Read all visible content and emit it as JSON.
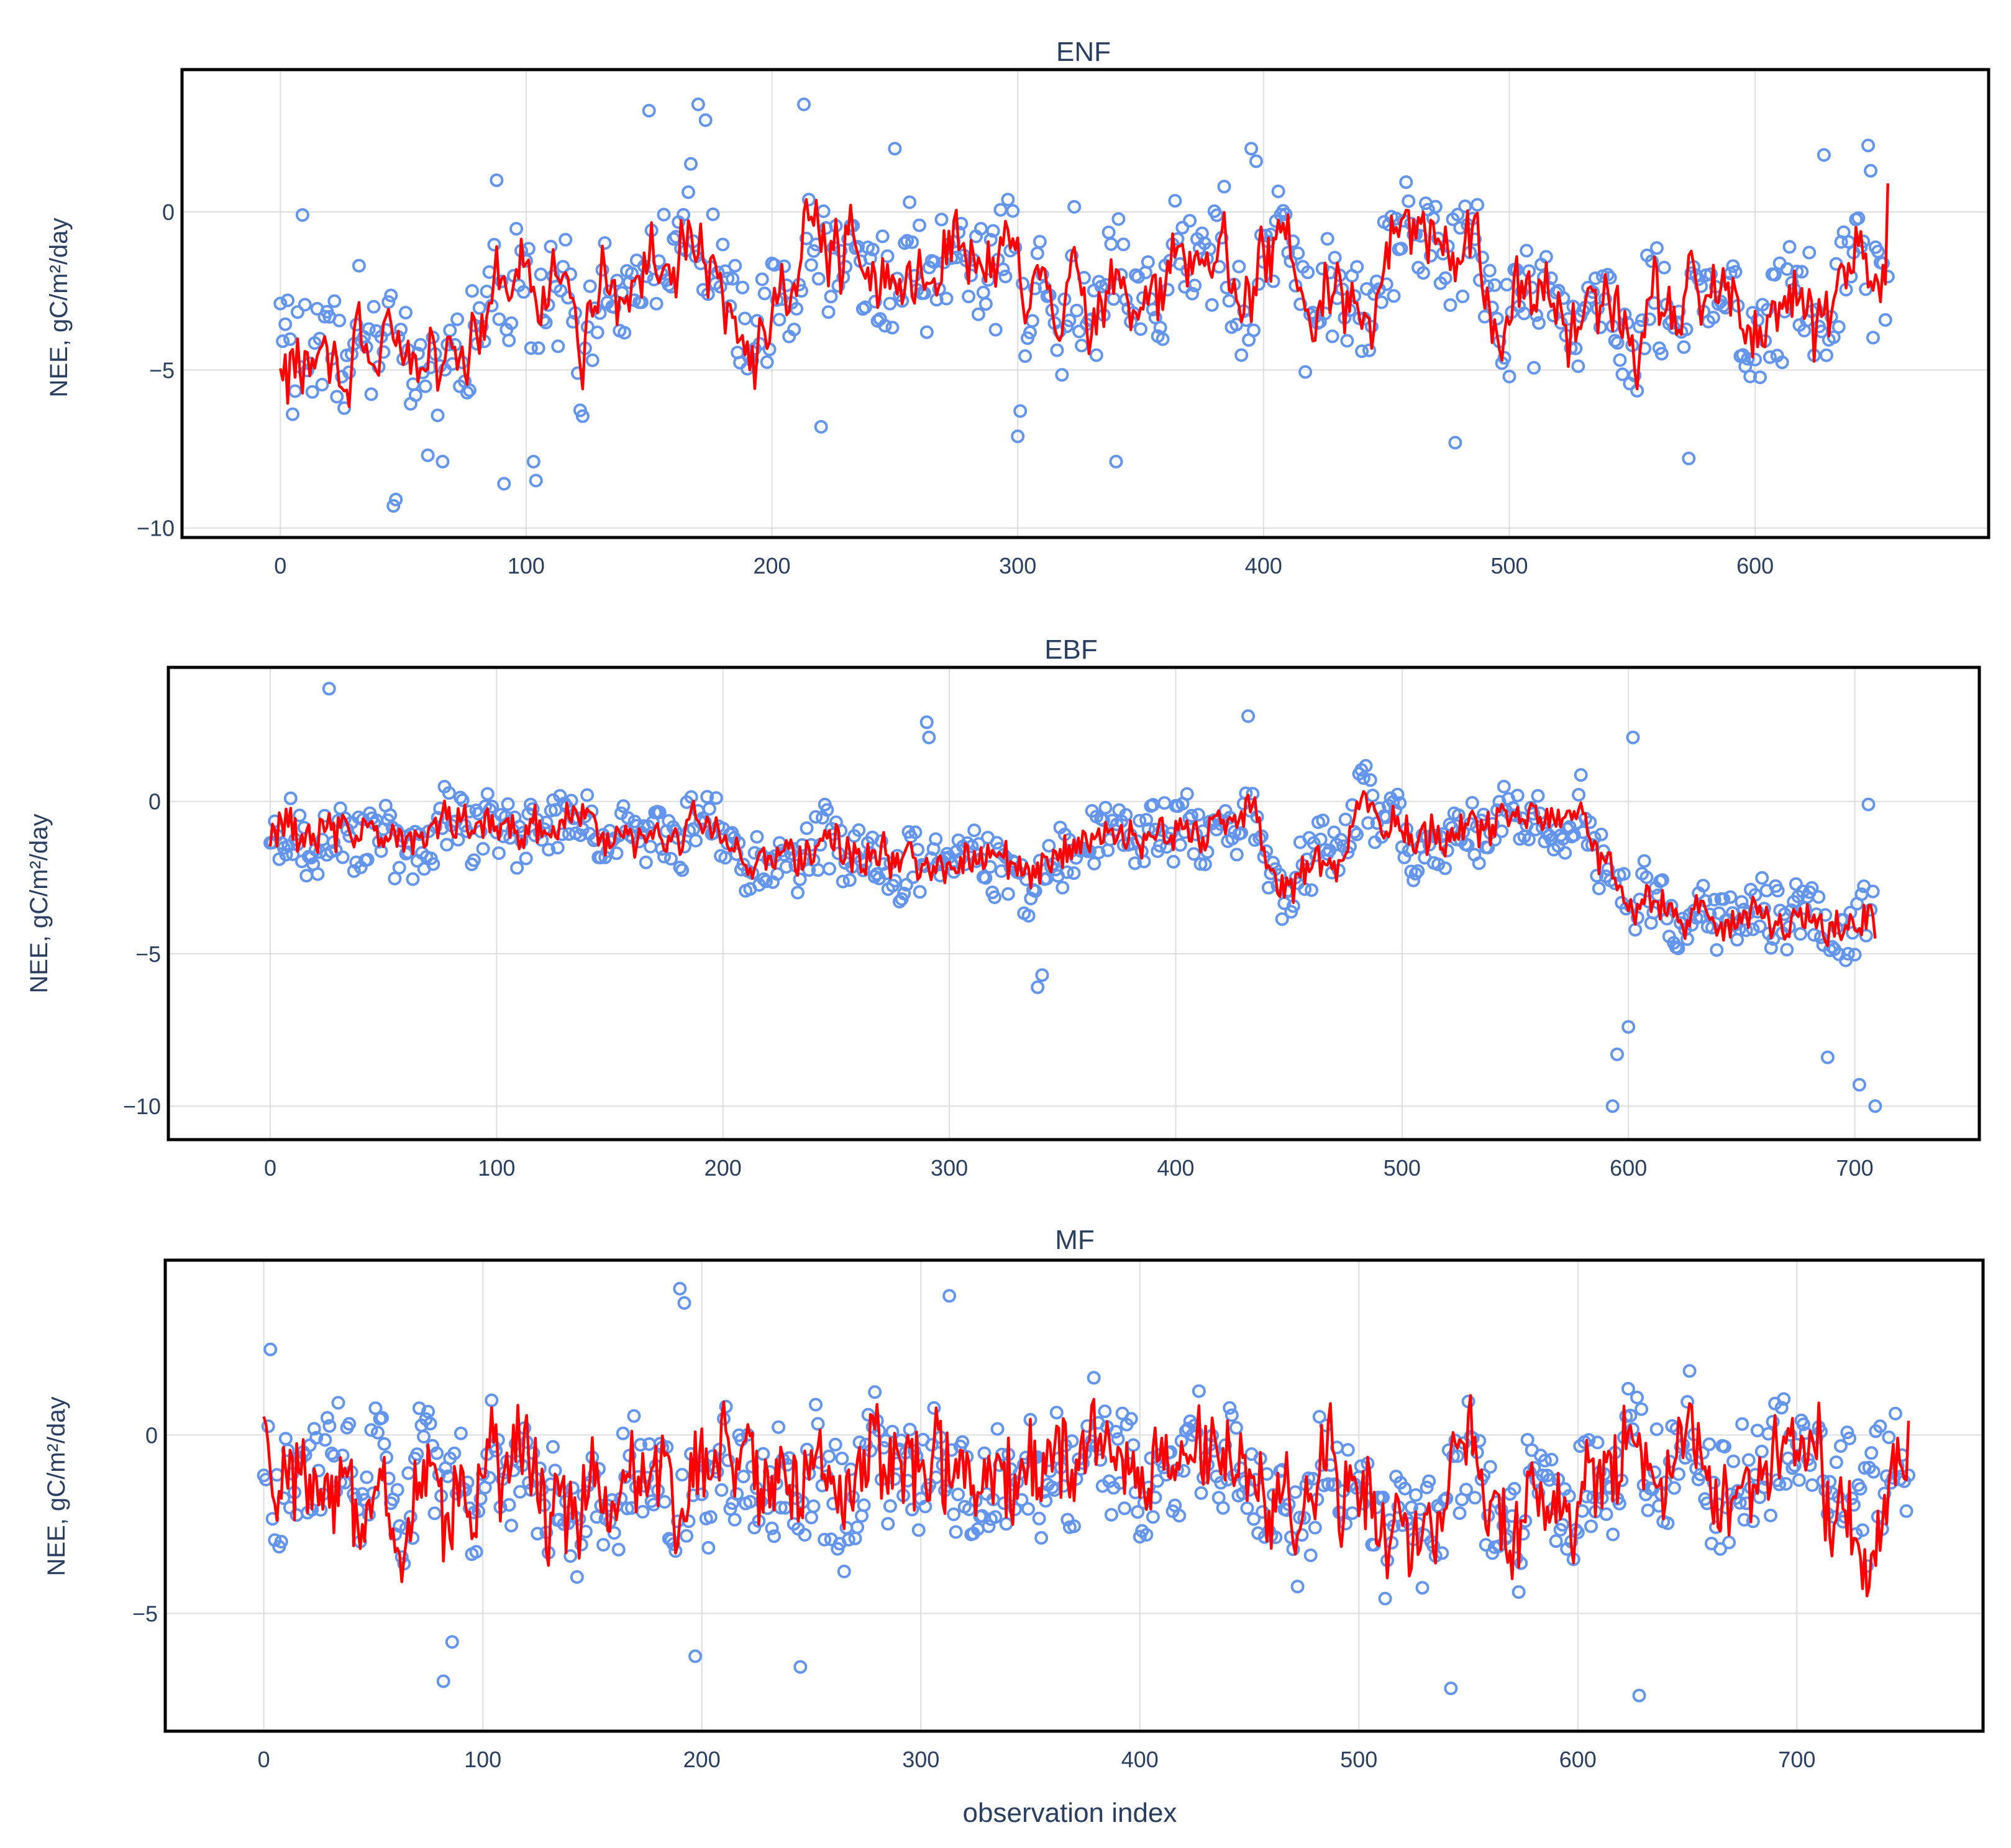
{
  "figure": {
    "xlabel": "observation index",
    "ylabel": "NEE, gC/m²/day",
    "colors": {
      "observed": "#6495ED",
      "predicted": "#FF0000",
      "grid": "#DDDDDD",
      "text": "#2A3F5F"
    }
  },
  "chart_data": [
    {
      "type": "scatter",
      "title": "ENF",
      "xlabel": "",
      "ylabel": "NEE, gC/m²/day",
      "xlim": [
        -40,
        695
      ],
      "ylim": [
        -10.3,
        4.5
      ],
      "xticks": [
        0,
        100,
        200,
        300,
        400,
        500,
        600
      ],
      "yticks": [
        -10,
        -5,
        0
      ],
      "n": 655,
      "seed": 11,
      "grid": true,
      "series": [
        {
          "name": "observed",
          "mode": "markers",
          "color": "#6495ED",
          "baseline": [
            [
              0,
              -3.6
            ],
            [
              50,
              -4.2
            ],
            [
              90,
              -2.7
            ],
            [
              130,
              -2.9
            ],
            [
              170,
              -1.3
            ],
            [
              200,
              -2.8
            ],
            [
              215,
              -1.2
            ],
            [
              240,
              -2.5
            ],
            [
              300,
              -2.4
            ],
            [
              350,
              -2.6
            ],
            [
              400,
              -2.2
            ],
            [
              450,
              -1.5
            ],
            [
              470,
              -1.3
            ],
            [
              500,
              -3.1
            ],
            [
              550,
              -4.3
            ],
            [
              600,
              -3.4
            ],
            [
              655,
              -3.0
            ]
          ],
          "amplitude": 1.5,
          "noise": 1.4,
          "extremes": [
            [
              0,
              -2.9
            ],
            [
              3,
              -2.8
            ],
            [
              5,
              -6.4
            ],
            [
              8,
              -4.9
            ],
            [
              9,
              -0.1
            ],
            [
              46,
              -9.3
            ],
            [
              47,
              -9.1
            ],
            [
              60,
              -7.7
            ],
            [
              66,
              -7.9
            ],
            [
              88,
              1.0
            ],
            [
              91,
              -8.6
            ],
            [
              103,
              -7.9
            ],
            [
              104,
              -8.5
            ],
            [
              110,
              -1.1
            ],
            [
              150,
              3.2
            ],
            [
              170,
              3.4
            ],
            [
              173,
              2.9
            ],
            [
              213,
              3.4
            ],
            [
              220,
              -6.8
            ],
            [
              250,
              2.0
            ],
            [
              300,
              -7.1
            ],
            [
              301,
              -6.3
            ],
            [
              340,
              -7.9
            ],
            [
              395,
              2.0
            ],
            [
              397,
              1.6
            ],
            [
              478,
              -7.3
            ],
            [
              573,
              -7.8
            ],
            [
              628,
              1.8
            ],
            [
              646,
              2.1
            ],
            [
              647,
              1.3
            ]
          ]
        },
        {
          "name": "predicted",
          "mode": "lines",
          "color": "#FF0000",
          "baseline": [
            [
              0,
              -4.0
            ],
            [
              50,
              -4.4
            ],
            [
              90,
              -2.5
            ],
            [
              130,
              -2.6
            ],
            [
              170,
              -1.5
            ],
            [
              200,
              -3.2
            ],
            [
              215,
              -1.0
            ],
            [
              240,
              -2.5
            ],
            [
              300,
              -2.4
            ],
            [
              350,
              -2.7
            ],
            [
              400,
              -2.2
            ],
            [
              450,
              -1.4
            ],
            [
              470,
              -1.2
            ],
            [
              500,
              -3.0
            ],
            [
              550,
              -4.2
            ],
            [
              600,
              -3.5
            ],
            [
              655,
              -2.8
            ]
          ],
          "amplitude": 1.5,
          "noise": 0.6,
          "endpoint": [
            655,
            0.9
          ]
        }
      ]
    },
    {
      "type": "scatter",
      "title": "EBF",
      "xlabel": "",
      "ylabel": "NEE, gC/m²/day",
      "xlim": [
        -45,
        755
      ],
      "ylim": [
        -11.1,
        4.4
      ],
      "xticks": [
        0,
        100,
        200,
        300,
        400,
        500,
        600,
        700
      ],
      "yticks": [
        -10,
        -5,
        0
      ],
      "n": 710,
      "seed": 23,
      "grid": true,
      "series": [
        {
          "name": "observed",
          "mode": "markers",
          "color": "#6495ED",
          "baseline": [
            [
              0,
              -1.1
            ],
            [
              100,
              -0.9
            ],
            [
              200,
              -1.1
            ],
            [
              300,
              -2.2
            ],
            [
              345,
              -1.8
            ],
            [
              400,
              -0.6
            ],
            [
              435,
              -0.6
            ],
            [
              440,
              -2.1
            ],
            [
              470,
              -2.0
            ],
            [
              480,
              -0.8
            ],
            [
              580,
              -0.9
            ],
            [
              600,
              -3.4
            ],
            [
              710,
              -4.2
            ]
          ],
          "amplitude": 0.7,
          "noise": 0.9,
          "extremes": [
            [
              26,
              3.7
            ],
            [
              290,
              2.6
            ],
            [
              291,
              2.1
            ],
            [
              339,
              -6.1
            ],
            [
              341,
              -5.7
            ],
            [
              432,
              2.8
            ],
            [
              602,
              2.1
            ],
            [
              593,
              -10.0
            ],
            [
              595,
              -8.3
            ],
            [
              600,
              -7.4
            ],
            [
              688,
              -8.4
            ],
            [
              702,
              -9.3
            ],
            [
              709,
              -10.0
            ],
            [
              706,
              -0.1
            ]
          ]
        },
        {
          "name": "predicted",
          "mode": "lines",
          "color": "#FF0000",
          "baseline": [
            [
              0,
              -0.9
            ],
            [
              100,
              -0.9
            ],
            [
              200,
              -1.1
            ],
            [
              300,
              -2.1
            ],
            [
              345,
              -1.7
            ],
            [
              400,
              -0.8
            ],
            [
              435,
              -0.4
            ],
            [
              440,
              -2.3
            ],
            [
              470,
              -2.2
            ],
            [
              480,
              -0.8
            ],
            [
              580,
              -0.8
            ],
            [
              600,
              -3.6
            ],
            [
              710,
              -4.1
            ]
          ],
          "amplitude": 0.5,
          "noise": 0.5,
          "endpoint": [
            710,
            -4.5
          ]
        }
      ]
    },
    {
      "type": "scatter",
      "title": "MF",
      "xlabel": "observation index",
      "ylabel": "NEE, gC/m²/day",
      "xlim": [
        -45,
        785
      ],
      "ylim": [
        -8.3,
        4.9
      ],
      "xticks": [
        0,
        100,
        200,
        300,
        400,
        500,
        600,
        700
      ],
      "yticks": [
        -5,
        0
      ],
      "n": 752,
      "seed": 37,
      "grid": true,
      "series": [
        {
          "name": "observed",
          "mode": "markers",
          "color": "#6495ED",
          "baseline": [
            [
              0,
              -0.3
            ],
            [
              100,
              -1.7
            ],
            [
              200,
              -1.4
            ],
            [
              300,
              -1.1
            ],
            [
              400,
              -1.3
            ],
            [
              500,
              -1.4
            ],
            [
              600,
              -1.6
            ],
            [
              700,
              -1.4
            ],
            [
              752,
              -0.4
            ]
          ],
          "amplitude": 1.3,
          "noise": 1.4,
          "extremes": [
            [
              3,
              2.4
            ],
            [
              82,
              -6.9
            ],
            [
              86,
              -5.8
            ],
            [
              190,
              4.1
            ],
            [
              192,
              3.7
            ],
            [
              197,
              -6.2
            ],
            [
              245,
              -6.5
            ],
            [
              313,
              3.9
            ],
            [
              542,
              -7.1
            ],
            [
              628,
              -7.3
            ],
            [
              703,
              0.3
            ]
          ]
        },
        {
          "name": "predicted",
          "mode": "lines",
          "color": "#FF0000",
          "baseline": [
            [
              0,
              0.6
            ],
            [
              30,
              -1.9
            ],
            [
              100,
              -1.6
            ],
            [
              200,
              -1.2
            ],
            [
              300,
              -0.9
            ],
            [
              400,
              -1.3
            ],
            [
              500,
              -1.4
            ],
            [
              600,
              -1.6
            ],
            [
              700,
              -1.5
            ],
            [
              735,
              -2.5
            ],
            [
              752,
              0.3
            ]
          ],
          "amplitude": 1.3,
          "noise": 0.9,
          "endpoint": [
            752,
            0.4
          ]
        }
      ]
    }
  ]
}
